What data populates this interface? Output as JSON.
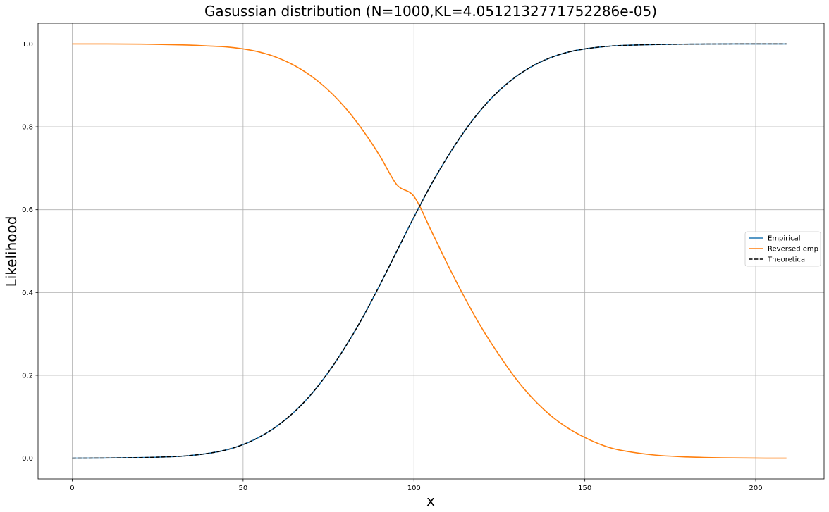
{
  "chart_data": {
    "type": "line",
    "title": "Gasussian distribution (N=1000,KL=4.0512132771752286e-05)",
    "xlabel": "x",
    "ylabel": "Likelihood",
    "xlim": [
      -10,
      220
    ],
    "ylim": [
      -0.05,
      1.05
    ],
    "xticks": [
      0,
      50,
      100,
      150,
      200
    ],
    "yticks": [
      0.0,
      0.2,
      0.4,
      0.6,
      0.8,
      1.0
    ],
    "xtick_labels": [
      "0",
      "50",
      "100",
      "150",
      "200"
    ],
    "ytick_labels": [
      "0.0",
      "0.2",
      "0.4",
      "0.6",
      "0.8",
      "1.0"
    ],
    "grid": true,
    "legend_position": "center-right",
    "x": [
      0,
      10,
      20,
      30,
      35,
      40,
      45,
      50,
      55,
      60,
      65,
      70,
      75,
      80,
      85,
      90,
      95,
      100,
      105,
      110,
      115,
      120,
      125,
      130,
      135,
      140,
      145,
      150,
      155,
      160,
      170,
      180,
      190,
      200,
      209
    ],
    "series": [
      {
        "name": "Empirical",
        "color": "#1f77b4",
        "style": "solid",
        "values": [
          0.0,
          0.0005,
          0.0015,
          0.004,
          0.007,
          0.012,
          0.02,
          0.033,
          0.052,
          0.078,
          0.112,
          0.155,
          0.208,
          0.27,
          0.34,
          0.418,
          0.5,
          0.582,
          0.66,
          0.73,
          0.792,
          0.845,
          0.888,
          0.922,
          0.948,
          0.967,
          0.98,
          0.988,
          0.993,
          0.996,
          0.9985,
          0.9995,
          0.9999,
          1.0,
          1.0
        ]
      },
      {
        "name": "Reversed emp",
        "color": "#ff7f0e",
        "style": "solid",
        "values": [
          1.0,
          1.0,
          0.9995,
          0.998,
          0.997,
          0.995,
          0.993,
          0.988,
          0.98,
          0.967,
          0.948,
          0.922,
          0.888,
          0.845,
          0.792,
          0.73,
          0.66,
          0.632,
          0.55,
          0.465,
          0.385,
          0.312,
          0.248,
          0.19,
          0.142,
          0.103,
          0.073,
          0.05,
          0.032,
          0.02,
          0.008,
          0.003,
          0.001,
          0.0002,
          0.0
        ]
      },
      {
        "name": "Theoretical",
        "color": "#000000",
        "style": "dashed",
        "values": [
          0.0,
          0.0005,
          0.0015,
          0.004,
          0.007,
          0.012,
          0.02,
          0.033,
          0.052,
          0.078,
          0.112,
          0.155,
          0.208,
          0.27,
          0.34,
          0.418,
          0.5,
          0.582,
          0.66,
          0.73,
          0.792,
          0.845,
          0.888,
          0.922,
          0.948,
          0.967,
          0.98,
          0.988,
          0.993,
          0.996,
          0.9985,
          0.9995,
          0.9999,
          1.0,
          1.0
        ]
      }
    ]
  }
}
